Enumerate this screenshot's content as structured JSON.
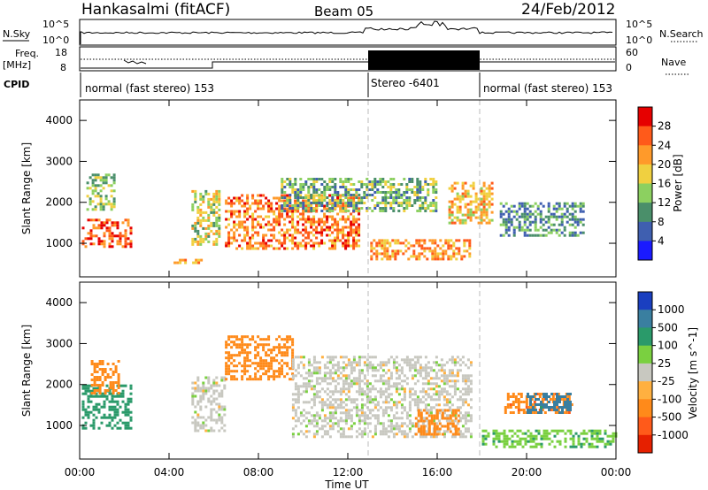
{
  "header": {
    "title": "Hankasalmi (fitACF)",
    "beam": "Beam 05",
    "date": "24/Feb/2012"
  },
  "noise_panel": {
    "left_label": "N.Sky",
    "right_label": "N.Search",
    "tick_top": "10^5",
    "tick_bottom": "10^0"
  },
  "freq_panel": {
    "left_label": "Freq.",
    "left_unit": "[MHz]",
    "left_ticks": [
      "18",
      "8"
    ],
    "right_label": "Nave",
    "right_ticks": [
      "60",
      "0"
    ]
  },
  "cpid": {
    "label": "CPID",
    "segments": [
      "normal (fast stereo) 153",
      "Stereo -6401",
      "normal (fast stereo) 153"
    ]
  },
  "time_axis": {
    "label": "Time UT",
    "ticks": [
      "00:00",
      "04:00",
      "08:00",
      "12:00",
      "16:00",
      "20:00",
      "00:00"
    ]
  },
  "power_panel": {
    "ylabel": "Slant Range [km]",
    "yticks": [
      "1000",
      "2000",
      "3000",
      "4000"
    ],
    "colorbar_label": "Power [dB]",
    "colorbar_ticks": [
      "4",
      "8",
      "12",
      "16",
      "20",
      "24",
      "28"
    ],
    "colors": [
      "#1a1aff",
      "#3f5fb0",
      "#4a8f6a",
      "#8cd060",
      "#f0d040",
      "#ff9a2a",
      "#ff5a1a",
      "#e60000"
    ]
  },
  "velocity_panel": {
    "ylabel": "Slant Range [km]",
    "yticks": [
      "1000",
      "2000",
      "3000",
      "4000"
    ],
    "colorbar_label": "Velocity [m s^-1]",
    "colorbar_ticks": [
      "1000",
      "500",
      "100",
      "25",
      "-25",
      "-100",
      "-500",
      "-1000"
    ],
    "colors": [
      "#1a3fc0",
      "#3a7fa0",
      "#2a9a6a",
      "#7ad040",
      "#c8c8c0",
      "#ffb040",
      "#ff8a1a",
      "#ff5a1a",
      "#e62000"
    ]
  },
  "chart_data": [
    {
      "type": "heatmap",
      "title": "Power",
      "xlabel": "Time UT",
      "ylabel": "Slant Range [km]",
      "xlim": [
        0,
        24
      ],
      "ylim": [
        180,
        4500
      ],
      "colorbar": {
        "label": "Power [dB]",
        "range": [
          0,
          30
        ],
        "ticks": [
          4,
          8,
          12,
          16,
          20,
          24,
          28
        ]
      },
      "features": [
        {
          "t_start": 0.1,
          "t_end": 2.3,
          "range_start": 900,
          "range_end": 1600,
          "power_db": 26
        },
        {
          "t_start": 0.3,
          "t_end": 1.6,
          "range_start": 1800,
          "range_end": 2700,
          "power_db": 14
        },
        {
          "t_start": 4.2,
          "t_end": 5.5,
          "range_start": 500,
          "range_end": 620,
          "power_db": 22
        },
        {
          "t_start": 5.0,
          "t_end": 6.2,
          "range_start": 1000,
          "range_end": 2300,
          "power_db": 16
        },
        {
          "t_start": 6.5,
          "t_end": 12.5,
          "range_start": 900,
          "range_end": 2200,
          "power_db": 24
        },
        {
          "t_start": 9.0,
          "t_end": 16.0,
          "range_start": 1800,
          "range_end": 2600,
          "power_db": 12
        },
        {
          "t_start": 13.0,
          "t_end": 17.5,
          "range_start": 600,
          "range_end": 1100,
          "power_db": 22
        },
        {
          "t_start": 16.5,
          "t_end": 18.5,
          "range_start": 1500,
          "range_end": 2500,
          "power_db": 20
        },
        {
          "t_start": 18.8,
          "t_end": 22.5,
          "range_start": 1200,
          "range_end": 2000,
          "power_db": 10
        }
      ]
    },
    {
      "type": "heatmap",
      "title": "Velocity",
      "xlabel": "Time UT",
      "ylabel": "Slant Range [km]",
      "xlim": [
        0,
        24
      ],
      "ylim": [
        180,
        4500
      ],
      "colorbar": {
        "label": "Velocity [m s^-1]",
        "ticks": [
          1000,
          500,
          100,
          25,
          -25,
          -100,
          -500,
          -1000
        ]
      },
      "features": [
        {
          "t_start": 0.1,
          "t_end": 2.3,
          "range_start": 900,
          "range_end": 2000,
          "velocity": 200
        },
        {
          "t_start": 0.5,
          "t_end": 1.8,
          "range_start": 1800,
          "range_end": 2600,
          "velocity": -300
        },
        {
          "t_start": 5.0,
          "t_end": 6.5,
          "range_start": 900,
          "range_end": 2200,
          "velocity": 0
        },
        {
          "t_start": 6.5,
          "t_end": 9.5,
          "range_start": 2100,
          "range_end": 3200,
          "velocity": -300
        },
        {
          "t_start": 9.5,
          "t_end": 17.5,
          "range_start": 700,
          "range_end": 2700,
          "velocity": 0
        },
        {
          "t_start": 15.0,
          "t_end": 17.0,
          "range_start": 800,
          "range_end": 1400,
          "velocity": -300
        },
        {
          "t_start": 19.0,
          "t_end": 22.0,
          "range_start": 1300,
          "range_end": 1800,
          "velocity": -400
        },
        {
          "t_start": 20.0,
          "t_end": 22.0,
          "range_start": 1300,
          "range_end": 1800,
          "velocity": 700
        },
        {
          "t_start": 18.0,
          "t_end": 24.0,
          "range_start": 500,
          "range_end": 900,
          "velocity": 80
        }
      ]
    }
  ]
}
